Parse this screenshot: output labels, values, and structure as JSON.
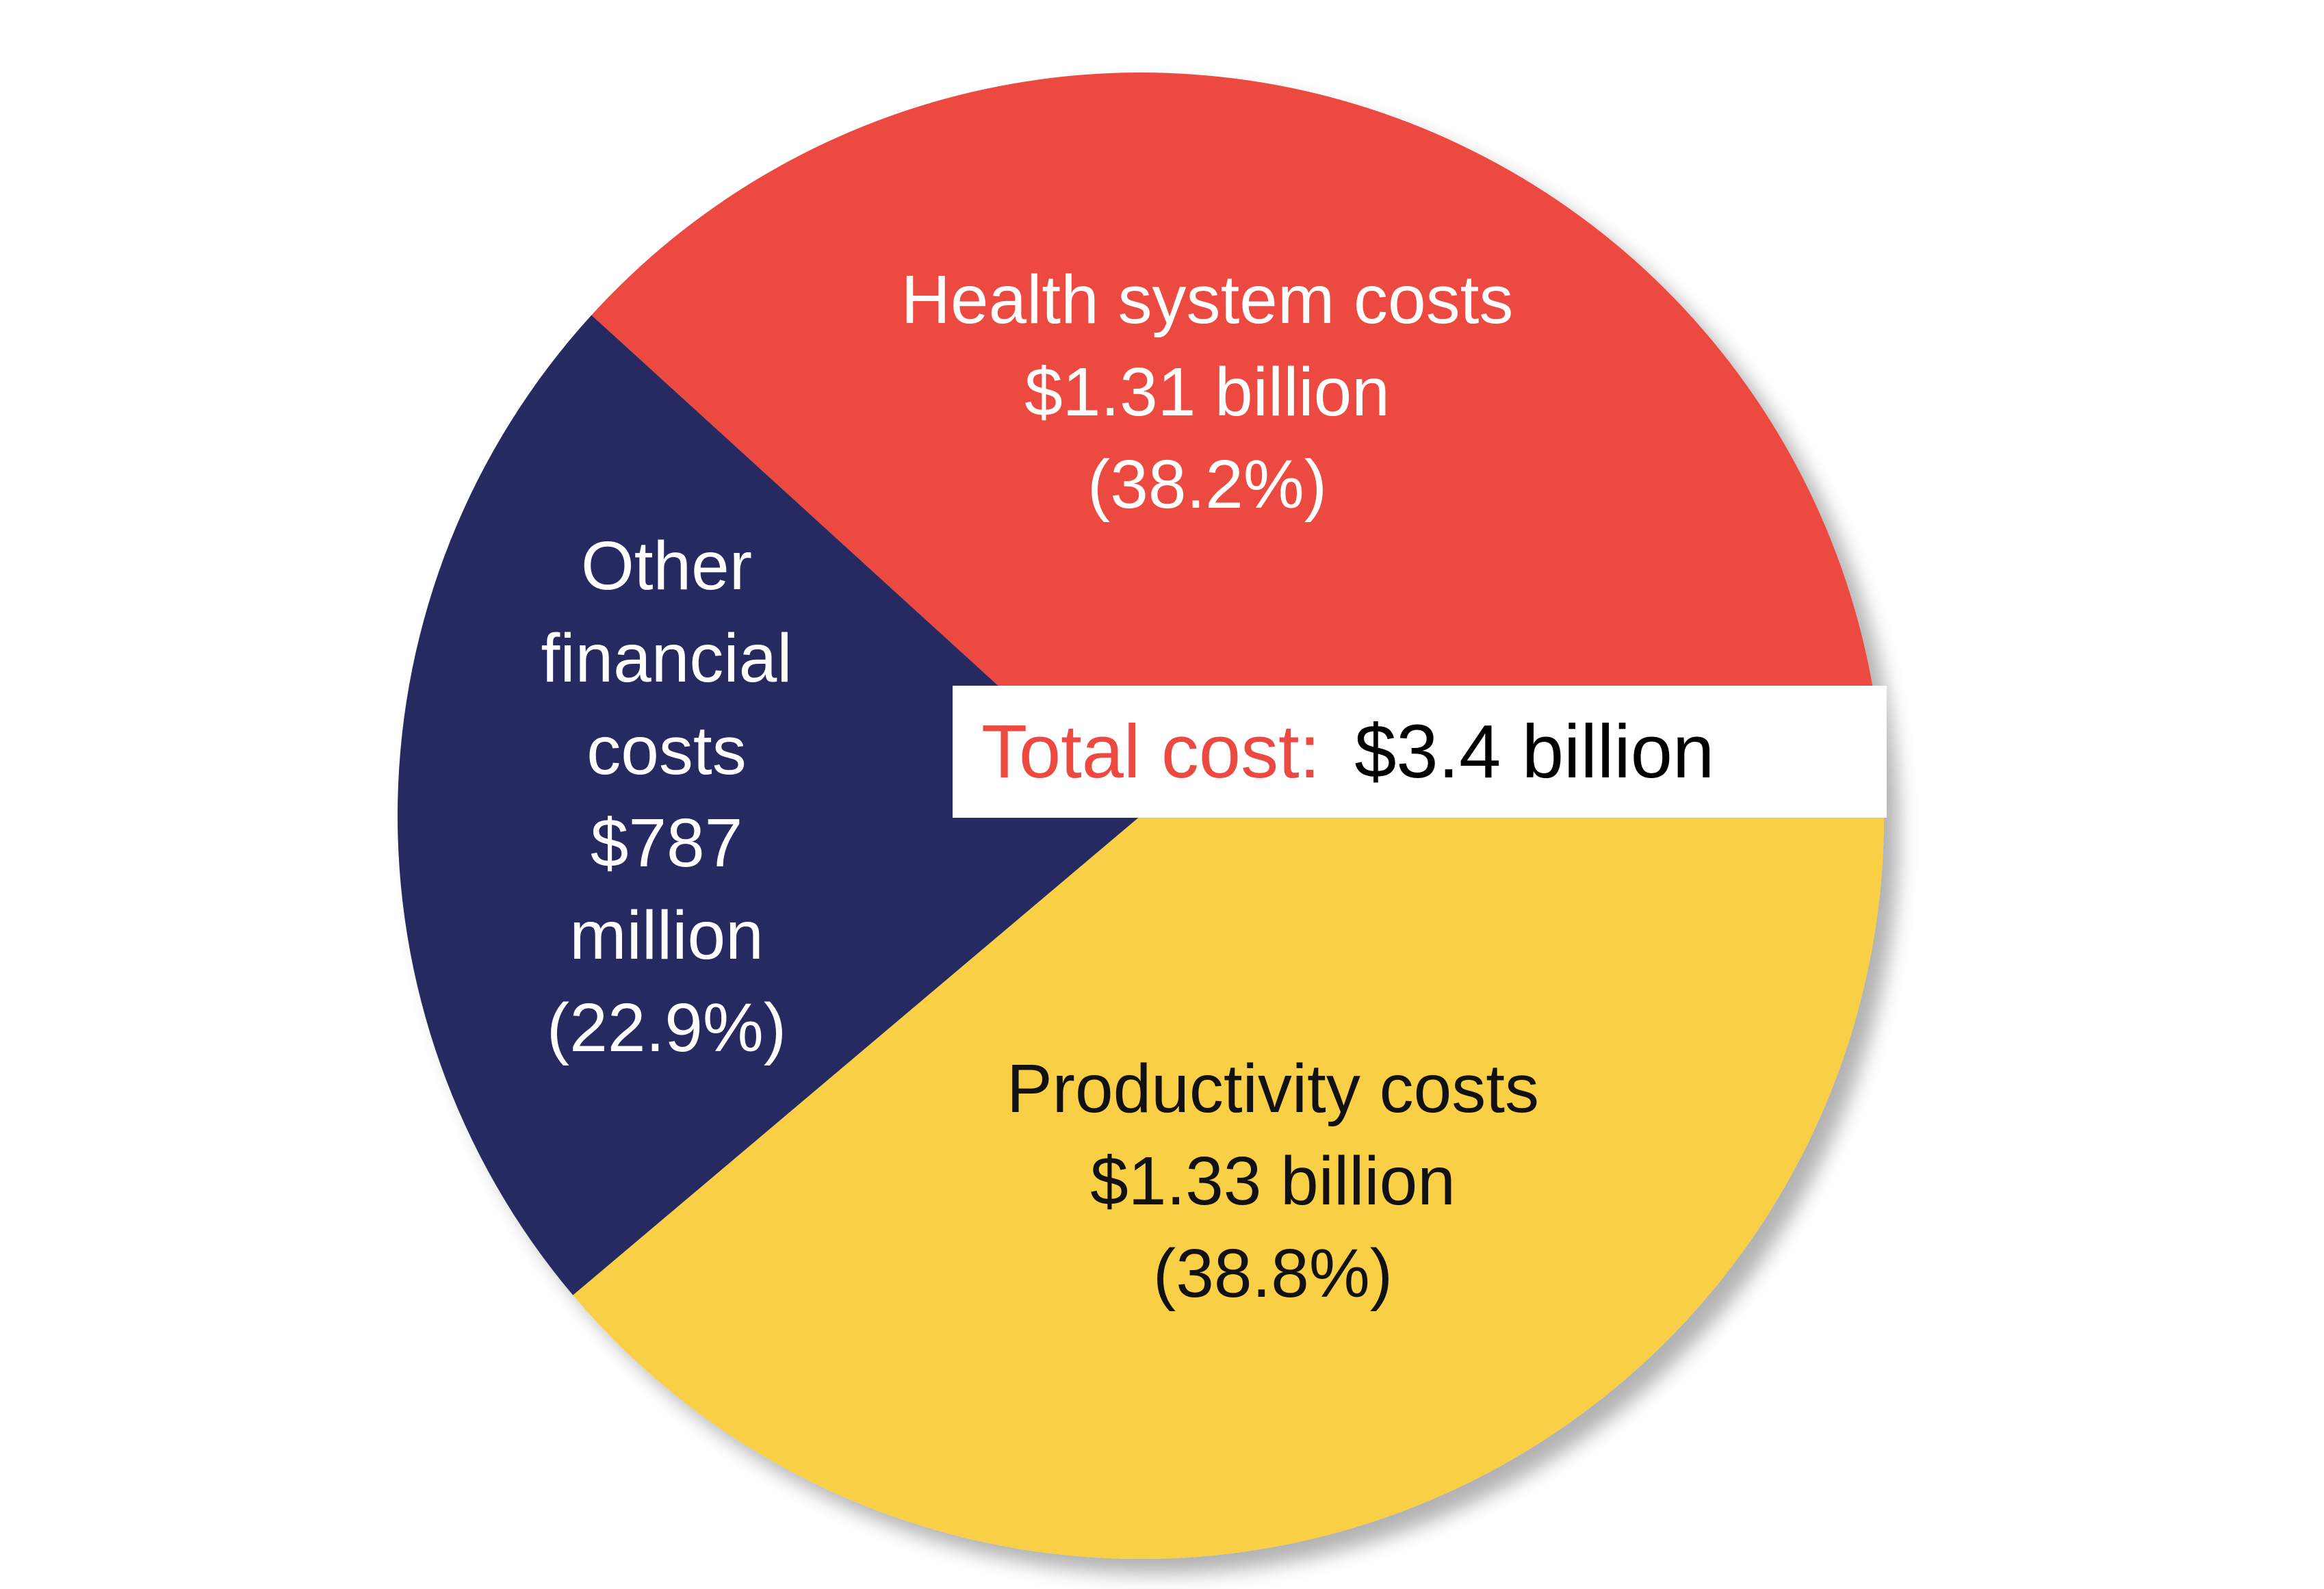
{
  "chart_data": {
    "type": "pie",
    "categories": [
      "Health system costs",
      "Other financial costs",
      "Productivity costs"
    ],
    "values": [
      38.2,
      22.9,
      38.8
    ],
    "value_labels": [
      "(38.2%)",
      "(22.9%)",
      "(38.8%)"
    ],
    "amounts": [
      1310000000,
      787000000,
      1330000000
    ],
    "amount_labels": [
      "$1.31 billion",
      "$787 million",
      "$1.33 billion"
    ],
    "colors": [
      "#ec4a41",
      "#252b60",
      "#f9d044"
    ],
    "label_colors": [
      "#ffffff",
      "#ffffff",
      "#111111"
    ],
    "total": {
      "label": "Total cost:",
      "value": 3400000000,
      "value_label": "$3.4 billion"
    }
  }
}
